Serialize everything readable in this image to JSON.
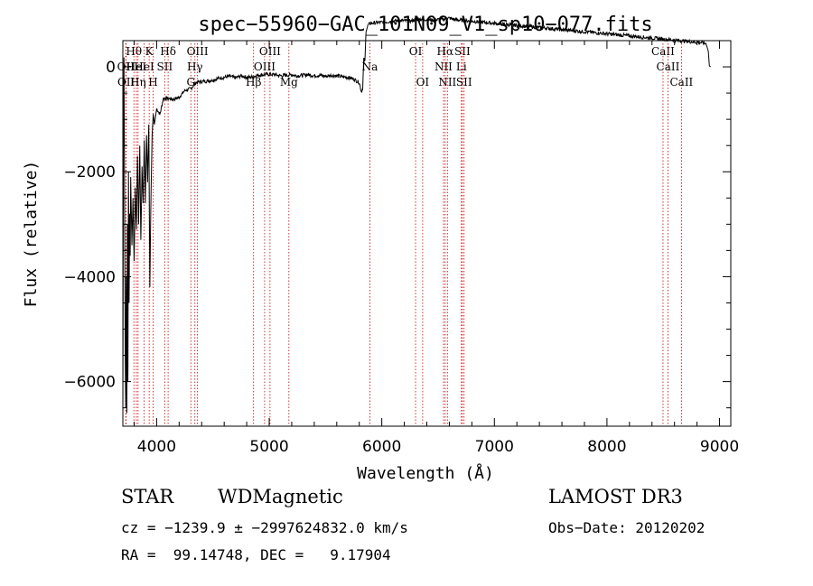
{
  "chart_data": {
    "type": "line",
    "title": "spec−55960−GAC_101N09_V1_sp10−077.fits",
    "xlabel": "Wavelength (Å)",
    "ylabel": "Flux (relative)",
    "xlim": [
      3700,
      9100
    ],
    "ylim": [
      -6850,
      500
    ],
    "xticks": [
      4000,
      5000,
      6000,
      7000,
      8000,
      9000
    ],
    "yticks": [
      -6000,
      -4000,
      -2000,
      0
    ],
    "grid": false,
    "series": [
      {
        "values": [
          [
            3700,
            -6700
          ],
          [
            3705,
            -1500
          ],
          [
            3710,
            180
          ],
          [
            3715,
            -2500
          ],
          [
            3720,
            -5200
          ],
          [
            3725,
            -6500
          ],
          [
            3730,
            -4000
          ],
          [
            3735,
            -6600
          ],
          [
            3740,
            -3000
          ],
          [
            3745,
            -6000
          ],
          [
            3750,
            -2000
          ],
          [
            3755,
            -4500
          ],
          [
            3760,
            -2800
          ],
          [
            3765,
            -3600
          ],
          [
            3770,
            -2100
          ],
          [
            3780,
            -3400
          ],
          [
            3790,
            -2500
          ],
          [
            3800,
            -3700
          ],
          [
            3810,
            -2300
          ],
          [
            3820,
            -3100
          ],
          [
            3830,
            -1700
          ],
          [
            3840,
            -3000
          ],
          [
            3850,
            -1500
          ],
          [
            3860,
            -3300
          ],
          [
            3870,
            -1900
          ],
          [
            3880,
            -2600
          ],
          [
            3890,
            -1400
          ],
          [
            3900,
            -2600
          ],
          [
            3910,
            -1300
          ],
          [
            3920,
            -2200
          ],
          [
            3930,
            -1100
          ],
          [
            3940,
            -4200
          ],
          [
            3950,
            -2400
          ],
          [
            3960,
            -1300
          ],
          [
            3970,
            -900
          ],
          [
            3980,
            -1100
          ],
          [
            4000,
            -800
          ],
          [
            4030,
            -900
          ],
          [
            4060,
            -600
          ],
          [
            4100,
            -600
          ],
          [
            4150,
            -620
          ],
          [
            4200,
            -580
          ],
          [
            4250,
            -450
          ],
          [
            4300,
            -420
          ],
          [
            4350,
            -300
          ],
          [
            4400,
            -280
          ],
          [
            4450,
            -270
          ],
          [
            4500,
            -250
          ],
          [
            4550,
            -220
          ],
          [
            4600,
            -200
          ],
          [
            4650,
            -180
          ],
          [
            4700,
            -210
          ],
          [
            4750,
            -170
          ],
          [
            4800,
            -200
          ],
          [
            4850,
            -190
          ],
          [
            4900,
            -160
          ],
          [
            4950,
            -150
          ],
          [
            5000,
            -140
          ],
          [
            5050,
            -150
          ],
          [
            5100,
            -170
          ],
          [
            5150,
            -160
          ],
          [
            5200,
            -150
          ],
          [
            5250,
            -170
          ],
          [
            5300,
            -160
          ],
          [
            5350,
            -150
          ],
          [
            5400,
            -170
          ],
          [
            5450,
            -160
          ],
          [
            5500,
            -180
          ],
          [
            5550,
            -160
          ],
          [
            5600,
            -170
          ],
          [
            5650,
            -190
          ],
          [
            5700,
            -200
          ],
          [
            5750,
            -230
          ],
          [
            5800,
            -300
          ],
          [
            5820,
            -480
          ],
          [
            5830,
            -400
          ],
          [
            5840,
            150
          ],
          [
            5850,
            100
          ],
          [
            5860,
            700
          ],
          [
            5880,
            800
          ],
          [
            5900,
            830
          ],
          [
            5950,
            840
          ],
          [
            6000,
            850
          ],
          [
            6050,
            860
          ],
          [
            6100,
            870
          ],
          [
            6150,
            880
          ],
          [
            6200,
            880
          ],
          [
            6250,
            870
          ],
          [
            6300,
            900
          ],
          [
            6350,
            910
          ],
          [
            6400,
            900
          ],
          [
            6450,
            890
          ],
          [
            6500,
            900
          ],
          [
            6550,
            910
          ],
          [
            6600,
            930
          ],
          [
            6650,
            900
          ],
          [
            6700,
            890
          ],
          [
            6750,
            880
          ],
          [
            6800,
            870
          ],
          [
            6850,
            860
          ],
          [
            6900,
            850
          ],
          [
            6950,
            840
          ],
          [
            7000,
            830
          ],
          [
            7100,
            810
          ],
          [
            7200,
            790
          ],
          [
            7300,
            770
          ],
          [
            7400,
            750
          ],
          [
            7500,
            730
          ],
          [
            7600,
            710
          ],
          [
            7700,
            690
          ],
          [
            7800,
            670
          ],
          [
            7900,
            650
          ],
          [
            8000,
            630
          ],
          [
            8100,
            610
          ],
          [
            8200,
            590
          ],
          [
            8300,
            570
          ],
          [
            8400,
            550
          ],
          [
            8500,
            530
          ],
          [
            8600,
            510
          ],
          [
            8700,
            490
          ],
          [
            8800,
            470
          ],
          [
            8850,
            460
          ],
          [
            8880,
            440
          ],
          [
            8900,
            300
          ],
          [
            8910,
            20
          ],
          [
            8920,
            0
          ]
        ]
      }
    ],
    "lines": [
      {
        "wl": 3726,
        "label": "OII",
        "row": 2
      },
      {
        "wl": 3729,
        "label": "OII",
        "row": 3
      },
      {
        "wl": 3798,
        "label": "Hθ",
        "row": 1
      },
      {
        "wl": 3820,
        "label": "HeI",
        "row": 2
      },
      {
        "wl": 3835,
        "label": "Hη",
        "row": 3
      },
      {
        "wl": 3889,
        "label": "HeI",
        "row": 2
      },
      {
        "wl": 3934,
        "label": "K",
        "row": 1
      },
      {
        "wl": 3969,
        "label": "H",
        "row": 3
      },
      {
        "wl": 4072,
        "label": "SII",
        "row": 2
      },
      {
        "wl": 4102,
        "label": "Hδ",
        "row": 1
      },
      {
        "wl": 4304,
        "label": "G",
        "row": 3
      },
      {
        "wl": 4340,
        "label": "Hγ",
        "row": 2
      },
      {
        "wl": 4363,
        "label": "OIII",
        "row": 1
      },
      {
        "wl": 4861,
        "label": "Hβ",
        "row": 3
      },
      {
        "wl": 4959,
        "label": "OIII",
        "row": 2
      },
      {
        "wl": 5007,
        "label": "OIII",
        "row": 1
      },
      {
        "wl": 5175,
        "label": "Mg",
        "row": 3
      },
      {
        "wl": 5894,
        "label": "Na",
        "row": 2
      },
      {
        "wl": 6300,
        "label": "OI",
        "row": 1
      },
      {
        "wl": 6363,
        "label": "OI",
        "row": 3
      },
      {
        "wl": 6548,
        "label": "NII",
        "row": 2
      },
      {
        "wl": 6563,
        "label": "Hα",
        "row": 1
      },
      {
        "wl": 6583,
        "label": "NII",
        "row": 3
      },
      {
        "wl": 6707,
        "label": "Li",
        "row": 2
      },
      {
        "wl": 6716,
        "label": "SII",
        "row": 1
      },
      {
        "wl": 6731,
        "label": "SII",
        "row": 3
      },
      {
        "wl": 8498,
        "label": "CaII",
        "row": 1
      },
      {
        "wl": 8542,
        "label": "CaII",
        "row": 2
      },
      {
        "wl": 8662,
        "label": "CaII",
        "row": 3
      }
    ],
    "line_color": "#cc0000"
  },
  "info": {
    "class": "STAR",
    "subclass": "WDMagnetic",
    "survey": "LAMOST DR3",
    "cz_line": "cz = −1239.9 ± −2997624832.0 km/s",
    "obs_date": "Obs−Date: 20120202",
    "radec_line": "RA =  99.14748, DEC =   9.17904"
  }
}
